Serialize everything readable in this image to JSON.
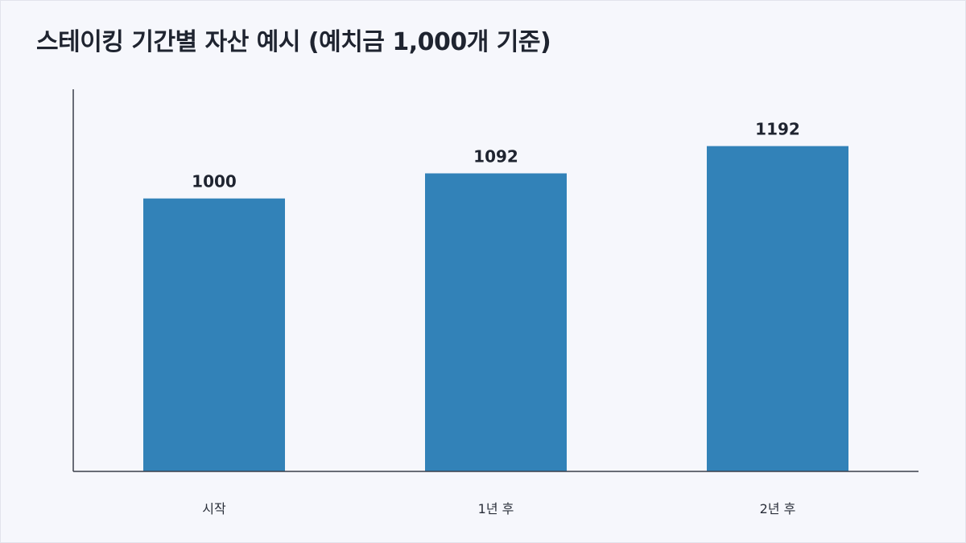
{
  "chart_data": {
    "type": "bar",
    "title": "스테이킹 기간별 자산 예시 (예치금 1,000개 기준)",
    "xlabel": "",
    "ylabel": "",
    "categories": [
      "시작",
      "1년 후",
      "2년 후"
    ],
    "values": [
      1000,
      1092,
      1192
    ],
    "ylim": [
      0,
      1400
    ],
    "grid": false,
    "legend": "none",
    "bar_color": "#3282b8",
    "axis_color": "#3a3f4a"
  }
}
